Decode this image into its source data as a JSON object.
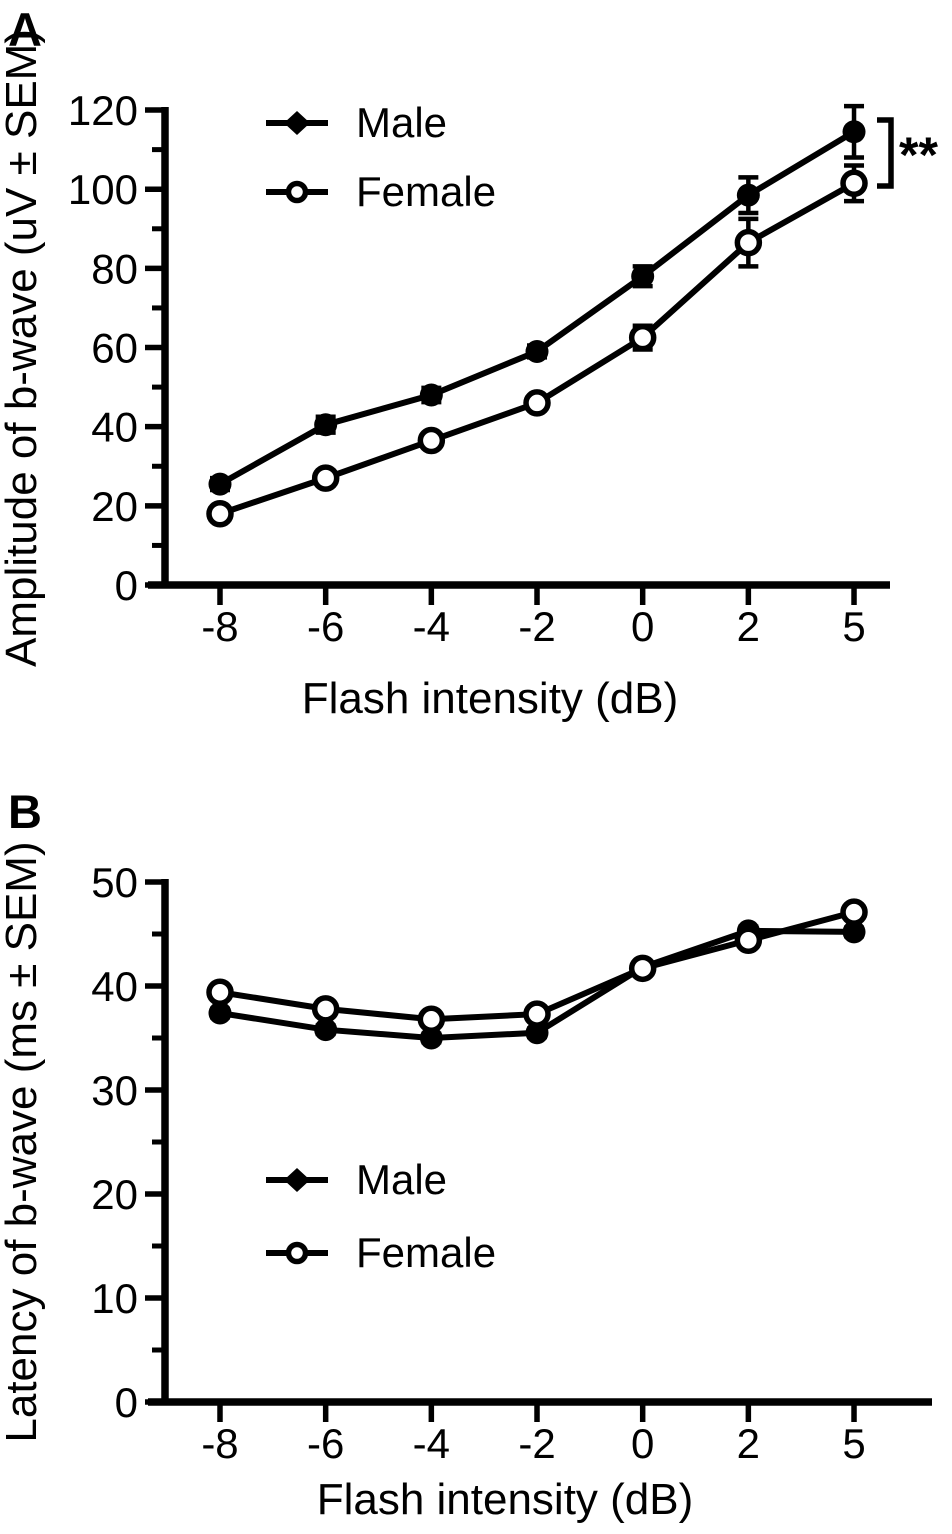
{
  "figure": {
    "background_color": "#ffffff",
    "ink_color": "#000000",
    "panel_letters": [
      "A",
      "B"
    ]
  },
  "chart_data": [
    {
      "panel": "A",
      "type": "line",
      "title": "",
      "xlabel": "Flash intensity (dB)",
      "ylabel": "Amplitude of b-wave (uV ± SEM)",
      "x_tick_labels": [
        "-8",
        "-6",
        "-4",
        "-2",
        "0",
        "2",
        "5"
      ],
      "x_values": [
        -8,
        -6,
        -4,
        -2,
        0,
        2,
        5
      ],
      "ylim": [
        0,
        120
      ],
      "y_major_step": 20,
      "y_minor_step": 10,
      "y_tick_labels": [
        "0",
        "20",
        "40",
        "60",
        "80",
        "100",
        "120"
      ],
      "grid": false,
      "legend_position": "top-left-inside",
      "series": [
        {
          "name": "Male",
          "marker": "filled-circle",
          "legend_marker": "filled-diamond",
          "values": [
            25.5,
            40.5,
            48,
            59,
            78,
            98.5,
            114.5
          ],
          "sem": [
            1.5,
            2,
            1.8,
            1.5,
            2.5,
            4.5,
            6.5
          ]
        },
        {
          "name": "Female",
          "marker": "open-circle",
          "legend_marker": "open-circle",
          "values": [
            18,
            27,
            36.5,
            46,
            62.5,
            86.5,
            101.5
          ],
          "sem": [
            1.5,
            1.8,
            1.5,
            1.5,
            3,
            6,
            4.5
          ]
        }
      ],
      "annotation": {
        "type": "bracket",
        "text": "**",
        "location": "right-of-last-points"
      }
    },
    {
      "panel": "B",
      "type": "line",
      "title": "",
      "xlabel": "Flash intensity (dB)",
      "ylabel": "Latency of b-wave (ms ± SEM)",
      "x_tick_labels": [
        "-8",
        "-6",
        "-4",
        "-2",
        "0",
        "2",
        "5"
      ],
      "x_values": [
        -8,
        -6,
        -4,
        -2,
        0,
        2,
        5
      ],
      "ylim": [
        0,
        50
      ],
      "y_major_step": 10,
      "y_minor_step": 5,
      "y_tick_labels": [
        "0",
        "10",
        "20",
        "30",
        "40",
        "50"
      ],
      "grid": false,
      "legend_position": "center-left-inside",
      "series": [
        {
          "name": "Male",
          "marker": "filled-circle",
          "legend_marker": "filled-diamond",
          "values": [
            37.4,
            35.8,
            35.0,
            35.5,
            41.8,
            45.3,
            45.2
          ],
          "sem": [
            0.4,
            0.4,
            0.4,
            0.4,
            0.4,
            0.4,
            0.4
          ]
        },
        {
          "name": "Female",
          "marker": "open-circle",
          "legend_marker": "open-circle",
          "values": [
            39.4,
            37.8,
            36.8,
            37.3,
            41.7,
            44.4,
            47.1
          ],
          "sem": [
            0.4,
            0.4,
            0.4,
            0.4,
            0.4,
            0.4,
            0.4
          ]
        }
      ],
      "annotation": null
    }
  ]
}
